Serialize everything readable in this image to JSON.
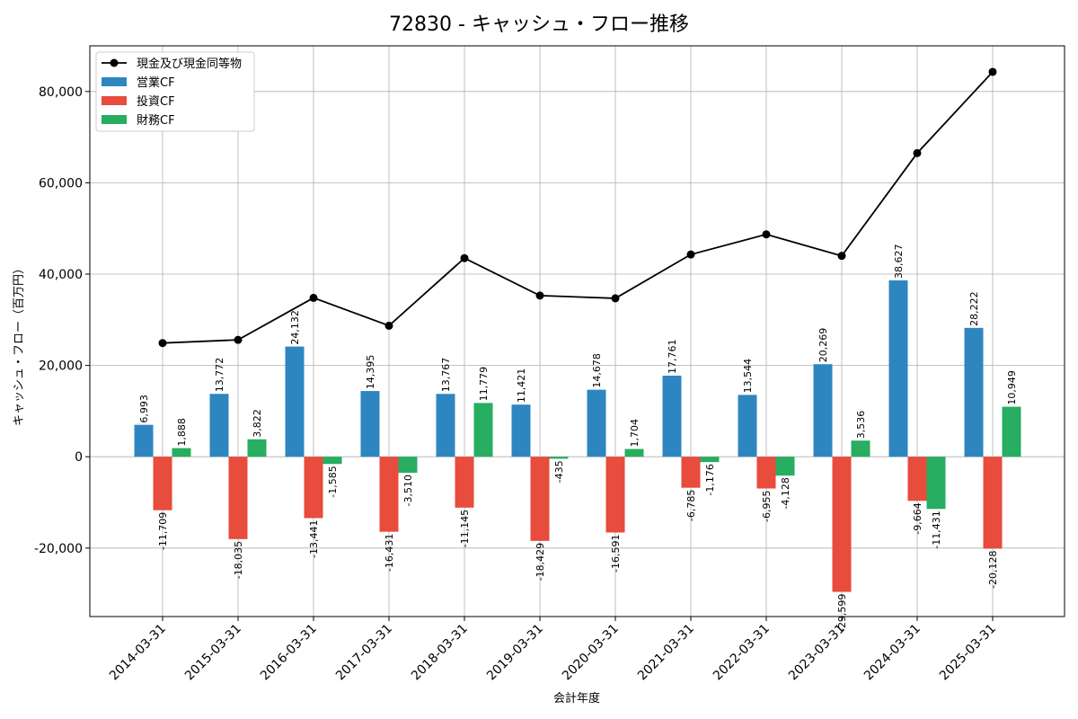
{
  "chart_data": {
    "type": "bar",
    "title": "72830 - キャッシュ・フロー推移",
    "xlabel": "会計年度",
    "ylabel": "キャッシュ・フロー（百万円）",
    "categories": [
      "2014-03-31",
      "2015-03-31",
      "2016-03-31",
      "2017-03-31",
      "2018-03-31",
      "2019-03-31",
      "2020-03-31",
      "2021-03-31",
      "2022-03-31",
      "2023-03-31",
      "2024-03-31",
      "2025-03-31"
    ],
    "ylim": [
      -35000,
      90000
    ],
    "yticks": [
      -20000,
      0,
      20000,
      40000,
      60000,
      80000
    ],
    "ytick_labels": [
      "-20,000",
      "0",
      "20,000",
      "40,000",
      "60,000",
      "80,000"
    ],
    "grid": true,
    "legend_position": "top-left",
    "series": [
      {
        "name": "営業CF",
        "kind": "bar",
        "color": "#2e86c1",
        "values": [
          6993,
          13772,
          24132,
          14395,
          13767,
          11421,
          14678,
          17761,
          13544,
          20269,
          38627,
          28222
        ],
        "labels": [
          "6,993",
          "13,772",
          "24,132",
          "14,395",
          "13,767",
          "11,421",
          "14,678",
          "17,761",
          "13,544",
          "20,269",
          "38,627",
          "28,222"
        ]
      },
      {
        "name": "投資CF",
        "kind": "bar",
        "color": "#e74c3c",
        "values": [
          -11709,
          -18035,
          -13441,
          -16431,
          -11145,
          -18429,
          -16591,
          -6785,
          -6955,
          -29599,
          -9664,
          -20128
        ],
        "labels": [
          "-11,709",
          "-18,035",
          "-13,441",
          "-16,431",
          "-11,145",
          "-18,429",
          "-16,591",
          "-6,785",
          "-6,955",
          "-29,599",
          "-9,664",
          "-20,128"
        ]
      },
      {
        "name": "財務CF",
        "kind": "bar",
        "color": "#27ae60",
        "values": [
          1888,
          3822,
          -1585,
          -3510,
          11779,
          -435,
          1704,
          -1176,
          -4128,
          3536,
          -11431,
          10949
        ],
        "labels": [
          "1,888",
          "3,822",
          "-1,585",
          "-3,510",
          "11,779",
          "-435",
          "1,704",
          "-1,176",
          "-4,128",
          "3,536",
          "-11,431",
          "10,949"
        ]
      },
      {
        "name": "現金及び現金同等物",
        "kind": "line",
        "color": "#000000",
        "values": [
          24900,
          25600,
          34800,
          28700,
          43500,
          35300,
          34700,
          44300,
          48700,
          44000,
          66500,
          84300
        ]
      }
    ]
  }
}
